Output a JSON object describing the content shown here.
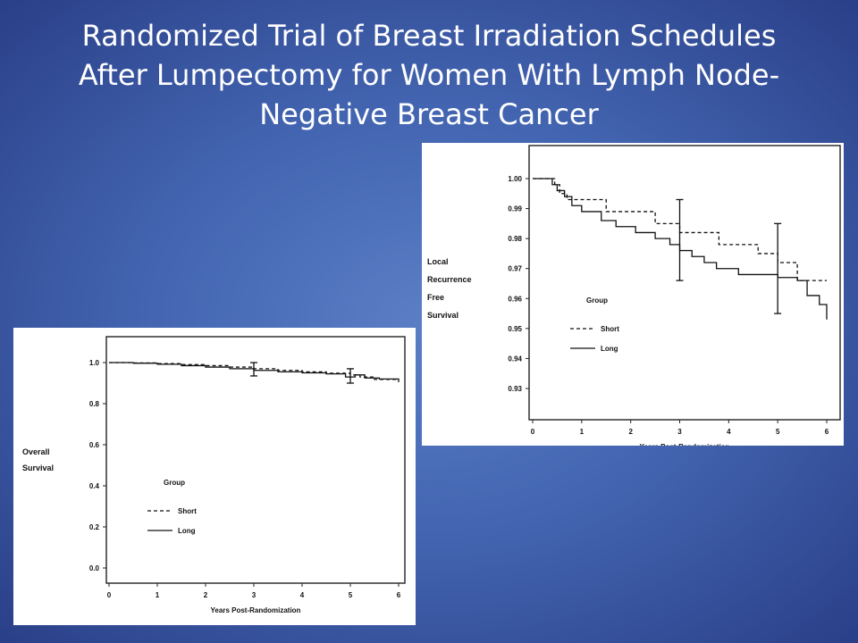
{
  "slide": {
    "title_lines": [
      "Randomized Trial of Breast Irradiation Schedules",
      "After Lumpectomy for Women With Lymph Node-",
      "Negative Breast Cancer"
    ]
  },
  "chart_data": [
    {
      "type": "line",
      "title": "",
      "xlabel": "Years Post-Randomization",
      "ylabel_lines": [
        "Overall",
        "Survival"
      ],
      "xlim": [
        0,
        6
      ],
      "ylim": [
        0.0,
        1.0
      ],
      "x_ticks": [
        "0",
        "1",
        "2",
        "3",
        "4",
        "5",
        "6"
      ],
      "y_ticks": [
        "0.0",
        "0.2",
        "0.4",
        "0.6",
        "0.8",
        "1.0"
      ],
      "legend_title": "Group",
      "legend_position": "center-left",
      "grid": false,
      "series": [
        {
          "name": "Short",
          "style": "dashed",
          "x": [
            0,
            0.5,
            1.0,
            1.5,
            2.0,
            2.5,
            3.0,
            3.5,
            4.0,
            4.5,
            5.0,
            5.2,
            5.5,
            6.0
          ],
          "y": [
            1.0,
            0.998,
            0.995,
            0.99,
            0.985,
            0.978,
            0.97,
            0.962,
            0.955,
            0.948,
            0.94,
            0.93,
            0.918,
            0.905
          ]
        },
        {
          "name": "Long",
          "style": "solid",
          "x": [
            0,
            0.5,
            1.0,
            1.5,
            2.0,
            2.5,
            3.0,
            3.5,
            4.0,
            4.5,
            4.9,
            5.1,
            5.3,
            5.6,
            6.0
          ],
          "y": [
            1.0,
            0.997,
            0.992,
            0.985,
            0.978,
            0.97,
            0.962,
            0.955,
            0.95,
            0.945,
            0.93,
            0.94,
            0.925,
            0.92,
            0.915
          ]
        }
      ],
      "error_bars": [
        {
          "x": 3.0,
          "low": 0.935,
          "high": 1.0
        },
        {
          "x": 5.0,
          "low": 0.9,
          "high": 0.97
        }
      ]
    },
    {
      "type": "line",
      "title": "",
      "xlabel": "Years Post-Randomization",
      "ylabel_lines": [
        "Local",
        "Recurrence",
        "Free",
        "Survival"
      ],
      "xlim": [
        0,
        6
      ],
      "ylim": [
        0.93,
        1.0
      ],
      "x_ticks": [
        "0",
        "1",
        "2",
        "3",
        "4",
        "5",
        "6"
      ],
      "y_ticks": [
        "0.93",
        "0.94",
        "0.95",
        "0.96",
        "0.97",
        "0.98",
        "0.99",
        "1.00"
      ],
      "legend_title": "Group",
      "legend_position": "center-left",
      "grid": false,
      "series": [
        {
          "name": "Short",
          "style": "dashed",
          "x": [
            0,
            0.45,
            0.55,
            0.7,
            1.5,
            2.5,
            3.0,
            3.8,
            4.6,
            5.0,
            5.4,
            6.0
          ],
          "y": [
            1.0,
            0.998,
            0.995,
            0.993,
            0.989,
            0.985,
            0.982,
            0.978,
            0.975,
            0.972,
            0.966,
            0.966
          ]
        },
        {
          "name": "Long",
          "style": "solid",
          "x": [
            0,
            0.4,
            0.5,
            0.65,
            0.8,
            1.0,
            1.4,
            1.7,
            2.1,
            2.5,
            2.8,
            3.0,
            3.25,
            3.5,
            3.75,
            4.2,
            5.0,
            5.4,
            5.6,
            5.85,
            6.0
          ],
          "y": [
            1.0,
            0.998,
            0.996,
            0.994,
            0.991,
            0.989,
            0.986,
            0.984,
            0.982,
            0.98,
            0.978,
            0.976,
            0.974,
            0.972,
            0.97,
            0.968,
            0.967,
            0.966,
            0.961,
            0.958,
            0.953
          ]
        }
      ],
      "error_bars": [
        {
          "x": 3.0,
          "low": 0.966,
          "high": 0.993
        },
        {
          "x": 5.0,
          "low": 0.955,
          "high": 0.985
        }
      ]
    }
  ]
}
